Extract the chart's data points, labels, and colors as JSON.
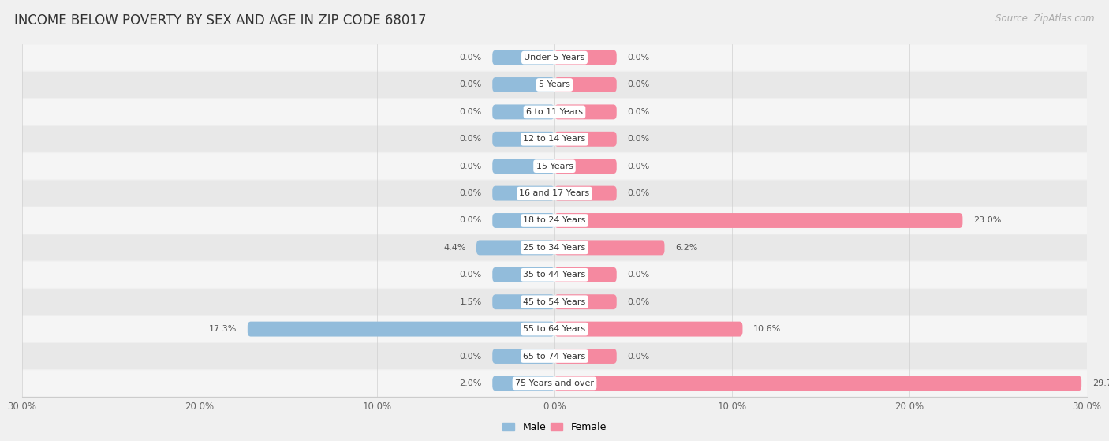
{
  "title": "INCOME BELOW POVERTY BY SEX AND AGE IN ZIP CODE 68017",
  "source": "Source: ZipAtlas.com",
  "categories": [
    "Under 5 Years",
    "5 Years",
    "6 to 11 Years",
    "12 to 14 Years",
    "15 Years",
    "16 and 17 Years",
    "18 to 24 Years",
    "25 to 34 Years",
    "35 to 44 Years",
    "45 to 54 Years",
    "55 to 64 Years",
    "65 to 74 Years",
    "75 Years and over"
  ],
  "male": [
    0.0,
    0.0,
    0.0,
    0.0,
    0.0,
    0.0,
    0.0,
    4.4,
    0.0,
    1.5,
    17.3,
    0.0,
    2.0
  ],
  "female": [
    0.0,
    0.0,
    0.0,
    0.0,
    0.0,
    0.0,
    23.0,
    6.2,
    0.0,
    0.0,
    10.6,
    0.0,
    29.7
  ],
  "male_color": "#92bcdb",
  "female_color": "#f589a0",
  "xlim": 30.0,
  "bar_height": 0.55,
  "min_bar_width": 3.5,
  "bg_color": "#f0f0f0",
  "row_bg_color": "#f0f0f0",
  "row_colors": [
    "#f5f5f5",
    "#e8e8e8"
  ],
  "title_fontsize": 12,
  "source_fontsize": 8.5,
  "label_fontsize": 8,
  "axis_fontsize": 8.5,
  "legend_fontsize": 9
}
